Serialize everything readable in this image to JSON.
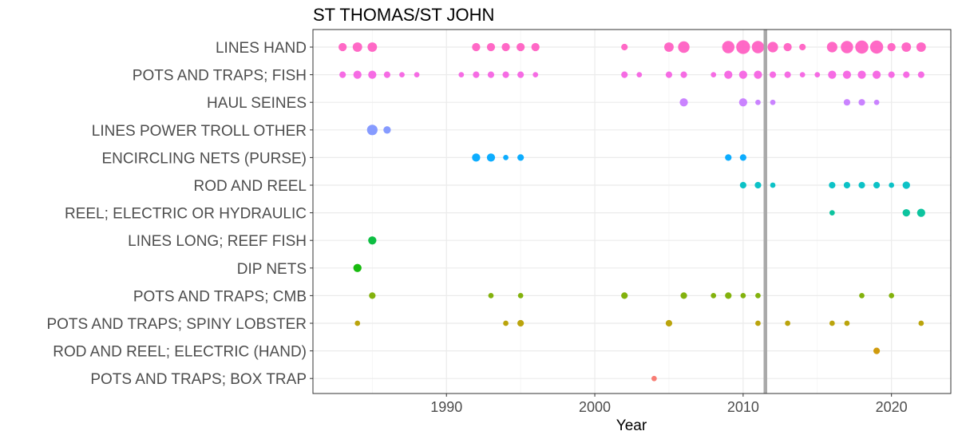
{
  "chart_data": {
    "type": "scatter",
    "title": "ST THOMAS/ST JOHN",
    "xlabel": "Year",
    "ylabel": "",
    "xlim": [
      1981,
      2024
    ],
    "x_ticks": [
      1990,
      2000,
      2010,
      2020
    ],
    "grid": true,
    "legend": "none",
    "reference_line": {
      "x": 2011.5,
      "color": "#a9a9a9"
    },
    "categories": [
      "LINES HAND",
      "POTS AND TRAPS; FISH",
      "HAUL SEINES",
      "LINES POWER TROLL OTHER",
      "ENCIRCLING NETS (PURSE)",
      "ROD AND REEL",
      "REEL; ELECTRIC OR HYDRAULIC",
      "LINES LONG; REEF FISH",
      "DIP NETS",
      "POTS AND TRAPS; CMB",
      "POTS AND TRAPS; SPINY LOBSTER",
      "ROD AND REEL; ELECTRIC (HAND)",
      "POTS AND TRAPS; BOX TRAP"
    ],
    "series": [
      {
        "category": "LINES HAND",
        "color": "#FF61C3",
        "points": [
          [
            1983,
            2
          ],
          [
            1984,
            3
          ],
          [
            1985,
            3
          ],
          [
            1992,
            2
          ],
          [
            1993,
            2
          ],
          [
            1994,
            2
          ],
          [
            1995,
            2
          ],
          [
            1996,
            2
          ],
          [
            2002,
            1
          ],
          [
            2005,
            3
          ],
          [
            2006,
            5
          ],
          [
            2009,
            6
          ],
          [
            2010,
            8
          ],
          [
            2011,
            6
          ],
          [
            2012,
            4
          ],
          [
            2013,
            2
          ],
          [
            2014,
            1
          ],
          [
            2016,
            4
          ],
          [
            2017,
            6
          ],
          [
            2018,
            7
          ],
          [
            2019,
            7
          ],
          [
            2020,
            2
          ],
          [
            2021,
            3
          ],
          [
            2022,
            3
          ]
        ]
      },
      {
        "category": "POTS AND TRAPS; FISH",
        "color": "#F564E3",
        "points": [
          [
            1983,
            1
          ],
          [
            1984,
            2
          ],
          [
            1985,
            2
          ],
          [
            1986,
            1
          ],
          [
            1987,
            0.5
          ],
          [
            1988,
            0.5
          ],
          [
            1991,
            0.5
          ],
          [
            1992,
            1
          ],
          [
            1993,
            1
          ],
          [
            1994,
            1
          ],
          [
            1995,
            1
          ],
          [
            1996,
            0.5
          ],
          [
            2002,
            1
          ],
          [
            2003,
            0.5
          ],
          [
            2005,
            1
          ],
          [
            2006,
            1
          ],
          [
            2008,
            0.5
          ],
          [
            2009,
            2
          ],
          [
            2010,
            2
          ],
          [
            2011,
            2
          ],
          [
            2012,
            1
          ],
          [
            2013,
            1
          ],
          [
            2014,
            0.5
          ],
          [
            2015,
            0.5
          ],
          [
            2016,
            2
          ],
          [
            2017,
            2
          ],
          [
            2018,
            2
          ],
          [
            2019,
            2
          ],
          [
            2020,
            1
          ],
          [
            2021,
            1
          ],
          [
            2022,
            1
          ]
        ]
      },
      {
        "category": "HAUL SEINES",
        "color": "#C77CFF",
        "points": [
          [
            2006,
            2
          ],
          [
            2010,
            2
          ],
          [
            2011,
            0.5
          ],
          [
            2012,
            0.5
          ],
          [
            2017,
            1
          ],
          [
            2018,
            1
          ],
          [
            2019,
            0.5
          ]
        ]
      },
      {
        "category": "LINES POWER TROLL OTHER",
        "color": "#7F96FF",
        "points": [
          [
            1985,
            4
          ],
          [
            1986,
            1.5
          ]
        ]
      },
      {
        "category": "ENCIRCLING NETS (PURSE)",
        "color": "#00A9FF",
        "points": [
          [
            1992,
            2
          ],
          [
            1993,
            2
          ],
          [
            1994,
            0.5
          ],
          [
            1995,
            1
          ],
          [
            2009,
            1
          ],
          [
            2010,
            1
          ]
        ]
      },
      {
        "category": "ROD AND REEL",
        "color": "#00BFC4",
        "points": [
          [
            2010,
            1
          ],
          [
            2011,
            1
          ],
          [
            2012,
            0.5
          ],
          [
            2016,
            1
          ],
          [
            2017,
            1
          ],
          [
            2018,
            1
          ],
          [
            2019,
            1
          ],
          [
            2020,
            0.5
          ],
          [
            2021,
            1.5
          ]
        ]
      },
      {
        "category": "REEL; ELECTRIC OR HYDRAULIC",
        "color": "#00C19A",
        "points": [
          [
            2016,
            0.5
          ],
          [
            2021,
            1.5
          ],
          [
            2022,
            2
          ]
        ]
      },
      {
        "category": "LINES LONG; REEF FISH",
        "color": "#00BA38",
        "points": [
          [
            1985,
            2
          ]
        ]
      },
      {
        "category": "DIP NETS",
        "color": "#0CB702",
        "points": [
          [
            1984,
            2
          ]
        ]
      },
      {
        "category": "POTS AND TRAPS; CMB",
        "color": "#7CAE00",
        "points": [
          [
            1985,
            1
          ],
          [
            1993,
            0.5
          ],
          [
            1995,
            0.5
          ],
          [
            2002,
            1
          ],
          [
            2006,
            1
          ],
          [
            2008,
            0.5
          ],
          [
            2009,
            1
          ],
          [
            2010,
            0.5
          ],
          [
            2011,
            0.5
          ],
          [
            2018,
            0.5
          ],
          [
            2020,
            0.5
          ]
        ]
      },
      {
        "category": "POTS AND TRAPS; SPINY LOBSTER",
        "color": "#B79F00",
        "points": [
          [
            1984,
            0.5
          ],
          [
            1994,
            0.5
          ],
          [
            1995,
            1
          ],
          [
            2005,
            1
          ],
          [
            2011,
            0.5
          ],
          [
            2013,
            0.5
          ],
          [
            2016,
            0.5
          ],
          [
            2017,
            0.5
          ],
          [
            2022,
            0.5
          ]
        ]
      },
      {
        "category": "ROD AND REEL; ELECTRIC (HAND)",
        "color": "#CD9600",
        "points": [
          [
            2019,
            1
          ]
        ]
      },
      {
        "category": "POTS AND TRAPS; BOX TRAP",
        "color": "#F8766D",
        "points": [
          [
            2004,
            0.5
          ]
        ]
      }
    ]
  }
}
